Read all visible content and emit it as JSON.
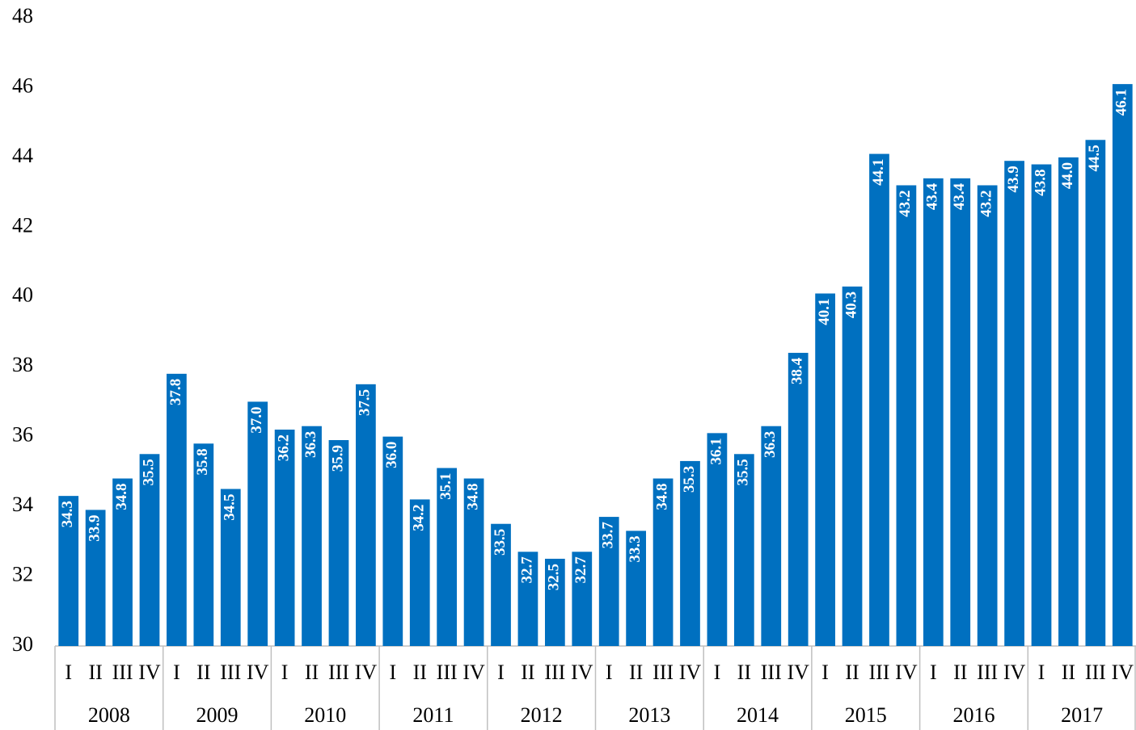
{
  "chart_data": {
    "type": "bar",
    "categories": [
      "I",
      "II",
      "III",
      "IV",
      "I",
      "II",
      "III",
      "IV",
      "I",
      "II",
      "III",
      "IV",
      "I",
      "II",
      "III",
      "IV",
      "I",
      "II",
      "III",
      "IV",
      "I",
      "II",
      "III",
      "IV",
      "I",
      "II",
      "III",
      "IV",
      "I",
      "II",
      "III",
      "IV",
      "I",
      "II",
      "III",
      "IV",
      "I",
      "II",
      "III",
      "IV"
    ],
    "groups": [
      "2008",
      "2009",
      "2010",
      "2011",
      "2012",
      "2013",
      "2014",
      "2015",
      "2016",
      "2017"
    ],
    "values": [
      34.3,
      33.9,
      34.8,
      35.5,
      37.8,
      35.8,
      34.5,
      37.0,
      36.2,
      36.3,
      35.9,
      37.5,
      36.0,
      34.2,
      35.1,
      34.8,
      33.5,
      32.7,
      32.5,
      32.7,
      33.7,
      33.3,
      34.8,
      35.3,
      36.1,
      35.5,
      36.3,
      38.4,
      40.1,
      40.3,
      44.1,
      43.2,
      43.4,
      43.4,
      43.2,
      43.9,
      43.8,
      44.0,
      44.5,
      46.1
    ],
    "value_labels": [
      "34.3",
      "33.9",
      "34.8",
      "35.5",
      "37.8",
      "35.8",
      "34.5",
      "37.0",
      "36.2",
      "36.3",
      "35.9",
      "37.5",
      "36.0",
      "34.2",
      "35.1",
      "34.8",
      "33.5",
      "32.7",
      "32.5",
      "32.7",
      "33.7",
      "33.3",
      "34.8",
      "35.3",
      "36.1",
      "35.5",
      "36.3",
      "38.4",
      "40.1",
      "40.3",
      "44.1",
      "43.2",
      "43.4",
      "43.4",
      "43.2",
      "43.9",
      "43.8",
      "44.0",
      "44.5",
      "46.1"
    ],
    "color": "#0070c0",
    "ylim": [
      30,
      48
    ],
    "yticks": [
      30,
      32,
      34,
      36,
      38,
      40,
      42,
      44,
      46,
      48
    ],
    "grid": false
  }
}
